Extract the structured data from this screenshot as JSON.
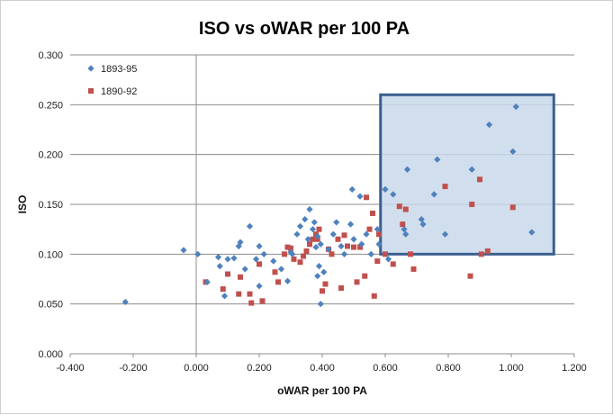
{
  "chart_data": {
    "type": "scatter",
    "title": "ISO vs oWAR per 100 PA",
    "xlabel": "oWAR per 100 PA",
    "ylabel": "ISO",
    "xlim": [
      -0.4,
      1.2
    ],
    "ylim": [
      0,
      0.3
    ],
    "x_ticks": [
      -0.4,
      -0.2,
      0.0,
      0.2,
      0.4,
      0.6,
      0.8,
      1.0,
      1.2
    ],
    "y_ticks": [
      0.0,
      0.05,
      0.1,
      0.15,
      0.2,
      0.25,
      0.3
    ],
    "x_tick_labels": [
      "-0.400",
      "-0.200",
      "0.000",
      "0.200",
      "0.400",
      "0.600",
      "0.800",
      "1.000",
      "1.200"
    ],
    "y_tick_labels": [
      "0.000",
      "0.050",
      "0.100",
      "0.150",
      "0.200",
      "0.250",
      "0.300"
    ],
    "grid": "horizontal",
    "legend_position": "top-left",
    "highlight_box": {
      "x0": 0.585,
      "x1": 1.135,
      "y0": 0.1,
      "y1": 0.26,
      "fill": "#c9d8ea",
      "stroke": "#3a5f8f"
    },
    "series": [
      {
        "name": "1893-95",
        "marker": "diamond",
        "color": "#4f81bd",
        "points": [
          [
            -0.225,
            0.052
          ],
          [
            -0.04,
            0.104
          ],
          [
            0.005,
            0.1
          ],
          [
            0.035,
            0.072
          ],
          [
            0.07,
            0.097
          ],
          [
            0.075,
            0.088
          ],
          [
            0.09,
            0.058
          ],
          [
            0.1,
            0.095
          ],
          [
            0.12,
            0.096
          ],
          [
            0.135,
            0.108
          ],
          [
            0.14,
            0.112
          ],
          [
            0.155,
            0.085
          ],
          [
            0.17,
            0.128
          ],
          [
            0.19,
            0.095
          ],
          [
            0.2,
            0.068
          ],
          [
            0.2,
            0.108
          ],
          [
            0.215,
            0.1
          ],
          [
            0.245,
            0.093
          ],
          [
            0.27,
            0.085
          ],
          [
            0.29,
            0.073
          ],
          [
            0.3,
            0.102
          ],
          [
            0.305,
            0.1
          ],
          [
            0.32,
            0.12
          ],
          [
            0.33,
            0.128
          ],
          [
            0.345,
            0.135
          ],
          [
            0.355,
            0.115
          ],
          [
            0.36,
            0.145
          ],
          [
            0.37,
            0.125
          ],
          [
            0.375,
            0.132
          ],
          [
            0.38,
            0.107
          ],
          [
            0.385,
            0.078
          ],
          [
            0.385,
            0.118
          ],
          [
            0.39,
            0.088
          ],
          [
            0.395,
            0.11
          ],
          [
            0.395,
            0.05
          ],
          [
            0.405,
            0.082
          ],
          [
            0.42,
            0.105
          ],
          [
            0.435,
            0.12
          ],
          [
            0.445,
            0.132
          ],
          [
            0.46,
            0.108
          ],
          [
            0.47,
            0.1
          ],
          [
            0.49,
            0.13
          ],
          [
            0.495,
            0.165
          ],
          [
            0.5,
            0.115
          ],
          [
            0.52,
            0.158
          ],
          [
            0.525,
            0.11
          ],
          [
            0.54,
            0.12
          ],
          [
            0.555,
            0.1
          ],
          [
            0.575,
            0.125
          ],
          [
            0.58,
            0.11
          ],
          [
            0.6,
            0.165
          ],
          [
            0.61,
            0.095
          ],
          [
            0.625,
            0.16
          ],
          [
            0.66,
            0.125
          ],
          [
            0.665,
            0.12
          ],
          [
            0.67,
            0.185
          ],
          [
            0.715,
            0.135
          ],
          [
            0.72,
            0.13
          ],
          [
            0.755,
            0.16
          ],
          [
            0.765,
            0.195
          ],
          [
            0.79,
            0.12
          ],
          [
            0.875,
            0.185
          ],
          [
            0.93,
            0.23
          ],
          [
            1.005,
            0.203
          ],
          [
            1.015,
            0.248
          ],
          [
            1.065,
            0.122
          ]
        ]
      },
      {
        "name": "1890-92",
        "marker": "square",
        "color": "#c0504d",
        "points": [
          [
            0.03,
            0.072
          ],
          [
            0.085,
            0.065
          ],
          [
            0.1,
            0.08
          ],
          [
            0.135,
            0.06
          ],
          [
            0.14,
            0.077
          ],
          [
            0.17,
            0.06
          ],
          [
            0.175,
            0.051
          ],
          [
            0.2,
            0.09
          ],
          [
            0.21,
            0.053
          ],
          [
            0.25,
            0.082
          ],
          [
            0.26,
            0.072
          ],
          [
            0.28,
            0.1
          ],
          [
            0.29,
            0.107
          ],
          [
            0.3,
            0.106
          ],
          [
            0.31,
            0.095
          ],
          [
            0.33,
            0.092
          ],
          [
            0.34,
            0.098
          ],
          [
            0.35,
            0.103
          ],
          [
            0.36,
            0.11
          ],
          [
            0.37,
            0.115
          ],
          [
            0.38,
            0.12
          ],
          [
            0.385,
            0.115
          ],
          [
            0.39,
            0.125
          ],
          [
            0.4,
            0.063
          ],
          [
            0.41,
            0.07
          ],
          [
            0.42,
            0.105
          ],
          [
            0.43,
            0.1
          ],
          [
            0.45,
            0.115
          ],
          [
            0.46,
            0.066
          ],
          [
            0.47,
            0.119
          ],
          [
            0.48,
            0.108
          ],
          [
            0.5,
            0.107
          ],
          [
            0.51,
            0.072
          ],
          [
            0.52,
            0.107
          ],
          [
            0.535,
            0.078
          ],
          [
            0.54,
            0.157
          ],
          [
            0.55,
            0.125
          ],
          [
            0.56,
            0.141
          ],
          [
            0.565,
            0.058
          ],
          [
            0.575,
            0.093
          ],
          [
            0.58,
            0.12
          ],
          [
            0.6,
            0.1
          ],
          [
            0.625,
            0.09
          ],
          [
            0.645,
            0.148
          ],
          [
            0.655,
            0.13
          ],
          [
            0.665,
            0.145
          ],
          [
            0.68,
            0.1
          ],
          [
            0.69,
            0.085
          ],
          [
            0.79,
            0.168
          ],
          [
            0.87,
            0.078
          ],
          [
            0.875,
            0.15
          ],
          [
            0.9,
            0.175
          ],
          [
            0.905,
            0.1
          ],
          [
            0.925,
            0.103
          ],
          [
            1.005,
            0.147
          ]
        ]
      }
    ]
  }
}
